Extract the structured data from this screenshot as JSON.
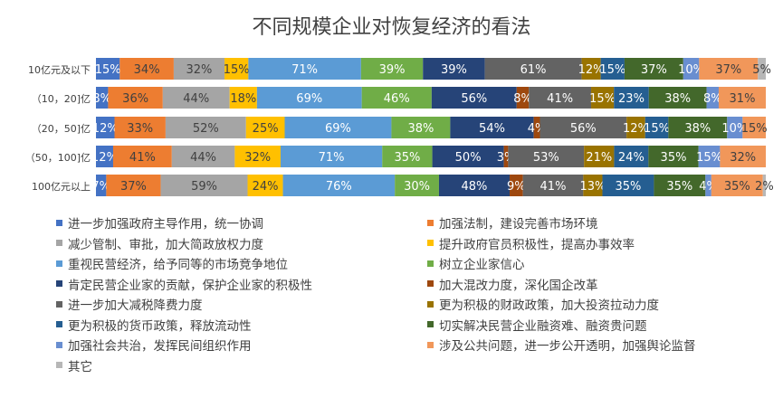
{
  "chart_data": {
    "type": "bar",
    "stacked": true,
    "orientation": "horizontal",
    "title": "不同规模企业对恢复经济的看法",
    "categories": [
      "10亿元及以下",
      "（10，20]亿",
      "（20，50]亿",
      "（50，100]亿",
      "100亿元以上"
    ],
    "legend_position": "bottom",
    "series": [
      {
        "name": "进一步加强政府主导作用，统一协调",
        "color": "#4472C4",
        "values": [
          15,
          8,
          12,
          12,
          7
        ]
      },
      {
        "name": "加强法制，建设完善市场环境",
        "color": "#ED7D31",
        "values": [
          34,
          36,
          33,
          41,
          37
        ]
      },
      {
        "name": "减少管制、审批，加大简政放权力度",
        "color": "#A5A5A5",
        "values": [
          32,
          44,
          52,
          44,
          59
        ]
      },
      {
        "name": "提升政府官员积极性，提高办事效率",
        "color": "#FFC000",
        "values": [
          15,
          18,
          25,
          32,
          24
        ]
      },
      {
        "name": "重视民营经济，给予同等的市场竞争地位",
        "color": "#5B9BD5",
        "values": [
          71,
          69,
          69,
          71,
          76
        ]
      },
      {
        "name": "树立企业家信心",
        "color": "#70AD47",
        "values": [
          39,
          46,
          38,
          35,
          30
        ]
      },
      {
        "name": "肯定民营企业家的贡献，保护企业家的积极性",
        "color": "#264478",
        "values": [
          39,
          56,
          54,
          50,
          48
        ]
      },
      {
        "name": "加大混改力度，深化国企改革",
        "color": "#9E480E",
        "values": [
          0,
          8,
          4,
          3,
          9
        ]
      },
      {
        "name": "进一步加大减税降费力度",
        "color": "#636363",
        "values": [
          61,
          41,
          56,
          53,
          41
        ]
      },
      {
        "name": "更为积极的财政政策，加大投资拉动力度",
        "color": "#997300",
        "values": [
          12,
          15,
          12,
          21,
          13
        ]
      },
      {
        "name": "更为积极的货币政策，释放流动性",
        "color": "#255E91",
        "values": [
          15,
          23,
          15,
          24,
          35
        ]
      },
      {
        "name": "切实解决民营企业融资难、融资贵问题",
        "color": "#43682B",
        "values": [
          37,
          38,
          38,
          35,
          35
        ]
      },
      {
        "name": "加强社会共治，发挥民间组织作用",
        "color": "#698ED0",
        "values": [
          10,
          8,
          10,
          15,
          4
        ]
      },
      {
        "name": "涉及公共问题，进一步公开透明，加强舆论监督",
        "color": "#F1975A",
        "values": [
          37,
          31,
          15,
          32,
          35
        ]
      },
      {
        "name": "其它",
        "color": "#B7B7B7",
        "values": [
          5,
          0,
          0,
          0,
          2
        ]
      }
    ],
    "data_label_suffix": "%",
    "grid": false
  }
}
